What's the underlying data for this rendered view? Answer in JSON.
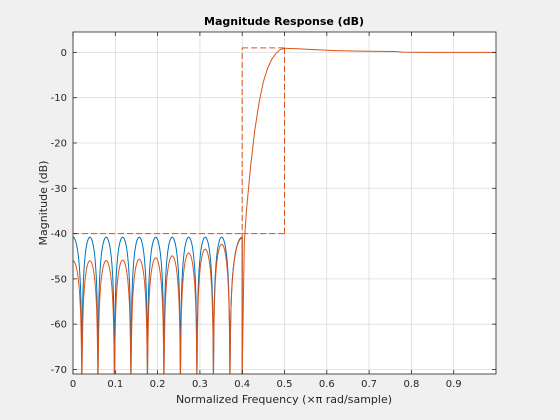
{
  "chart_data": {
    "type": "line",
    "title": "Magnitude Response (dB)",
    "xlabel": "Normalized Frequency (×π rad/sample)",
    "ylabel": "Magnitude (dB)",
    "xlim": [
      0,
      1
    ],
    "ylim": [
      -71,
      4.5
    ],
    "xticks": [
      0,
      0.1,
      0.2,
      0.3,
      0.4,
      0.5,
      0.6,
      0.7,
      0.8,
      0.9
    ],
    "xtick_labels": [
      "0",
      "0.1",
      "0.2",
      "0.3",
      "0.4",
      "0.5",
      "0.6",
      "0.7",
      "0.8",
      "0.9"
    ],
    "yticks": [
      0,
      -10,
      -20,
      -30,
      -40,
      -50,
      -60,
      -70
    ],
    "ytick_labels": [
      "0",
      "-10",
      "-20",
      "-30",
      "-40",
      "-50",
      "-60",
      "-70"
    ],
    "grid": true,
    "colors": {
      "figure_bg": "#f0f0f0",
      "axes_bg": "#ffffff",
      "grid": "#dcdcdc",
      "axis": "#262626",
      "series_blue": "#0072bd",
      "series_orange": "#d95319",
      "mask": "#d95319"
    },
    "series": [
      {
        "color_key": "series_blue",
        "stopband_ripple_peak_db": -40.8,
        "stopband_nulls": [
          0.021,
          0.059,
          0.098,
          0.137,
          0.176,
          0.215,
          0.254,
          0.293,
          0.332,
          0.371
        ],
        "null_depth_db": -71
      },
      {
        "color_key": "series_orange",
        "stopband_ripple_peak_db": -46,
        "stopband_ripple_near_edge_db": -41,
        "stopband_nulls": [
          0.021,
          0.059,
          0.098,
          0.137,
          0.176,
          0.215,
          0.254,
          0.293,
          0.332,
          0.371
        ],
        "null_depth_db": -71,
        "transition": [
          [
            0.4,
            -71
          ],
          [
            0.405,
            -42
          ],
          [
            0.41,
            -35
          ],
          [
            0.42,
            -25
          ],
          [
            0.43,
            -17
          ],
          [
            0.44,
            -11
          ],
          [
            0.45,
            -6.5
          ],
          [
            0.46,
            -3.5
          ],
          [
            0.47,
            -1.5
          ],
          [
            0.48,
            -0.2
          ],
          [
            0.49,
            0.6
          ],
          [
            0.5,
            0.9
          ]
        ],
        "passband": [
          [
            0.5,
            0.9
          ],
          [
            0.53,
            0.8
          ],
          [
            0.57,
            0.6
          ],
          [
            0.62,
            0.4
          ],
          [
            0.66,
            0.3
          ],
          [
            0.7,
            0.25
          ],
          [
            0.76,
            0.2
          ],
          [
            0.78,
            0.05
          ],
          [
            0.85,
            0.0
          ],
          [
            1.0,
            0.0
          ]
        ]
      }
    ],
    "mask": {
      "color_key": "mask",
      "stopband": {
        "x0": 0,
        "x1": 0.4,
        "y": -40
      },
      "transition_lines": [
        0.4,
        0.5
      ],
      "passband_top": {
        "x0": 0.4,
        "x1": 0.5,
        "y": 1
      }
    }
  }
}
